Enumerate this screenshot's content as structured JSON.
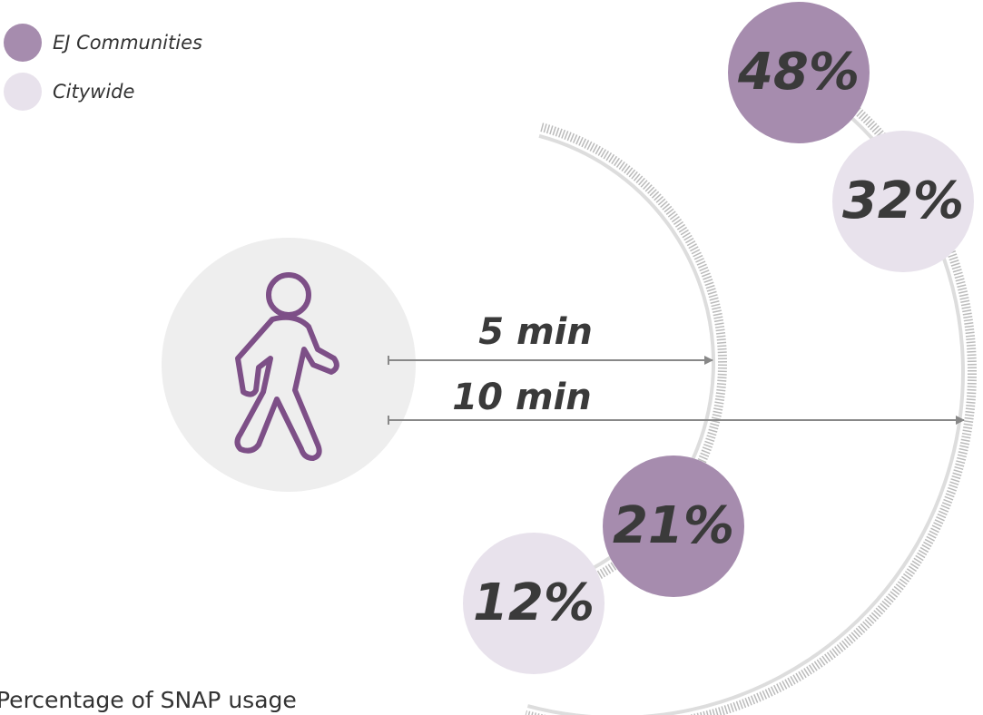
{
  "chart_data": {
    "type": "ring",
    "categories": [
      "5 min",
      "10 min"
    ],
    "series": [
      {
        "name": "EJ Communities",
        "color": "#a68cae",
        "values": [
          21,
          48
        ],
        "value_labels": [
          "21%",
          "48%"
        ]
      },
      {
        "name": "Citywide",
        "color": "#e8e2ec",
        "values": [
          12,
          32
        ],
        "value_labels": [
          "12%",
          "32%"
        ]
      }
    ],
    "caption": "Percentage of SNAP usage"
  }
}
